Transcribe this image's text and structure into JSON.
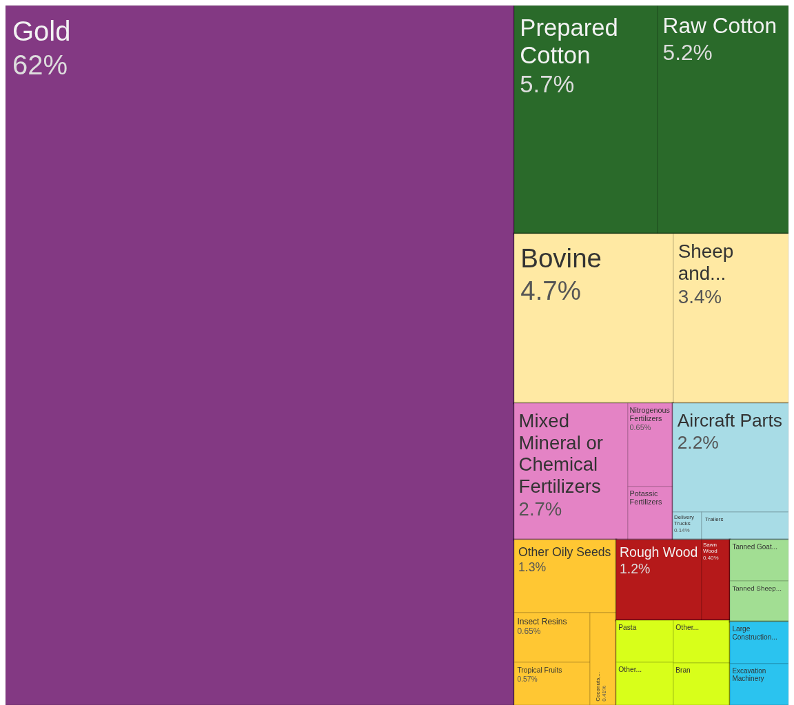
{
  "chart_data": {
    "type": "other",
    "categories": [
      "Gold",
      "Prepared Cotton",
      "Raw Cotton",
      "Bovine",
      "Sheep and...",
      "Mixed Mineral or Chemical Fertilizers",
      "Nitrogenous Fertilizers",
      "Potassic Fertilizers",
      "Aircraft Parts",
      "Delivery Trucks",
      "Trailers",
      "Other Oily Seeds",
      "Insect Resins",
      "Tropical Fruits",
      "Coconuts,...",
      "Rough Wood",
      "Sawn Wood",
      "Pasta",
      "Other...",
      "Other...",
      "Bran",
      "Tanned Goat...",
      "Tanned Sheep...",
      "Large Construction...",
      "Excavation Machinery"
    ],
    "values": [
      62,
      5.7,
      5.2,
      4.7,
      3.4,
      2.7,
      0.65,
      null,
      2.2,
      0.14,
      null,
      1.3,
      0.65,
      0.57,
      0.41,
      1.2,
      0.4,
      null,
      null,
      null,
      null,
      null,
      null,
      null,
      null
    ],
    "value_labels": [
      "62%",
      "5.7%",
      "5.2%",
      "4.7%",
      "3.4%",
      "2.7%",
      "0.65%",
      null,
      "2.2%",
      "0.14%",
      null,
      "1.3%",
      "0.65%",
      "0.57%",
      "0.41%",
      "1.2%",
      "0.40%",
      null,
      null,
      null,
      null,
      null,
      null,
      null,
      null
    ],
    "colors": [
      "#833983",
      "#2a6a2a",
      "#2a6a2a",
      "#ffe9a3",
      "#ffe9a3",
      "#e483c5",
      "#e483c5",
      "#e483c5",
      "#a8dce6",
      "#a8dce6",
      "#a8dce6",
      "#ffc733",
      "#ffc733",
      "#ffc733",
      "#ffc733",
      "#b5191a",
      "#b5191a",
      "#d8ff1a",
      "#d8ff1a",
      "#d8ff1a",
      "#d8ff1a",
      "#a2de93",
      "#a2de93",
      "#2bc3ef",
      "#2bc3ef"
    ]
  }
}
